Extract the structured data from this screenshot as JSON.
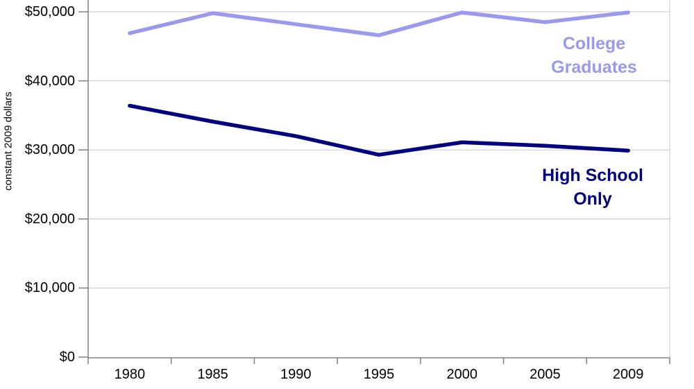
{
  "chart_data": {
    "type": "line",
    "title": "",
    "ylabel": "constant 2009 dollars",
    "xlabel": "",
    "categories": [
      "1980",
      "1985",
      "1990",
      "1995",
      "2000",
      "2005",
      "2009"
    ],
    "y_ticks": [
      {
        "value": 0,
        "label": "$0"
      },
      {
        "value": 10000,
        "label": "$10,000"
      },
      {
        "value": 20000,
        "label": "$20,000"
      },
      {
        "value": 30000,
        "label": "$30,000"
      },
      {
        "value": 40000,
        "label": "$40,000"
      },
      {
        "value": 50000,
        "label": "$50,000"
      }
    ],
    "ylim": [
      0,
      51700
    ],
    "grid": "horizontal",
    "legend_position": "inline-annotations",
    "series": [
      {
        "name": "College Graduates",
        "label_lines": [
          "College",
          "Graduates"
        ],
        "color": "#9999ee",
        "values": [
          46900,
          49800,
          48200,
          46600,
          49900,
          48500,
          49900
        ]
      },
      {
        "name": "High School Only",
        "label_lines": [
          "High School",
          "Only"
        ],
        "color": "#000080",
        "values": [
          36400,
          34100,
          32000,
          29300,
          31100,
          30600,
          29900
        ]
      }
    ],
    "colors": {
      "gridline": "#c6c6c6",
      "plot_border": "#c6c6c6",
      "axis": "#808080",
      "tick_label": "#000000"
    }
  }
}
